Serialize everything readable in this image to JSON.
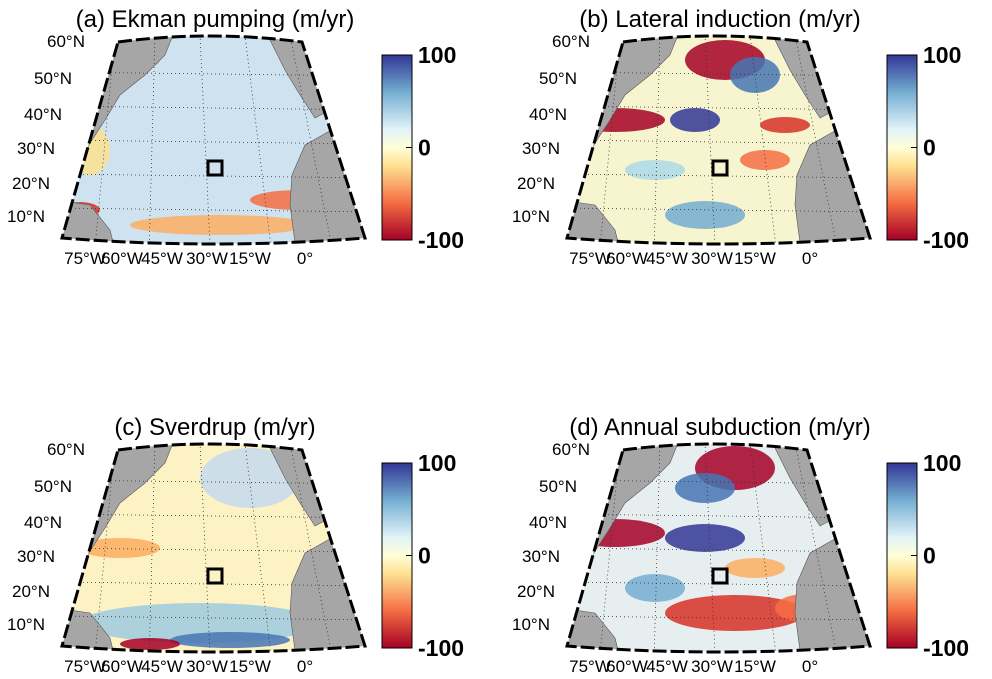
{
  "panels": [
    {
      "title": "(a) Ekman pumping (m/yr)",
      "lat_labels": [
        "60°N",
        "50°N",
        "40°N",
        "30°N",
        "20°N",
        "10°N"
      ],
      "lon_labels": [
        "75°W",
        "60°W",
        "45°W",
        "30°W",
        "15°W",
        "0°"
      ],
      "colorbar": {
        "lim": [
          -100,
          100
        ],
        "ticks": [
          100,
          0,
          -100
        ]
      }
    },
    {
      "title": "(b) Lateral induction (m/yr)",
      "lat_labels": [
        "60°N",
        "50°N",
        "40°N",
        "30°N",
        "20°N",
        "10°N"
      ],
      "lon_labels": [
        "75°W",
        "60°W",
        "45°W",
        "30°W",
        "15°W",
        "0°"
      ],
      "colorbar": {
        "lim": [
          -100,
          100
        ],
        "ticks": [
          100,
          0,
          -100
        ]
      }
    },
    {
      "title": "(c) Sverdrup (m/yr)",
      "lat_labels": [
        "60°N",
        "50°N",
        "40°N",
        "30°N",
        "20°N",
        "10°N"
      ],
      "lon_labels": [
        "75°W",
        "60°W",
        "45°W",
        "30°W",
        "15°W",
        "0°"
      ],
      "colorbar": {
        "lim": [
          -100,
          100
        ],
        "ticks": [
          100,
          0,
          -100
        ]
      }
    },
    {
      "title": "(d) Annual subduction (m/yr)",
      "lat_labels": [
        "60°N",
        "50°N",
        "40°N",
        "30°N",
        "20°N",
        "10°N"
      ],
      "lon_labels": [
        "75°W",
        "60°W",
        "45°W",
        "30°W",
        "15°W",
        "0°"
      ],
      "colorbar": {
        "lim": [
          -100,
          100
        ],
        "ticks": [
          100,
          0,
          -100
        ]
      }
    }
  ]
}
